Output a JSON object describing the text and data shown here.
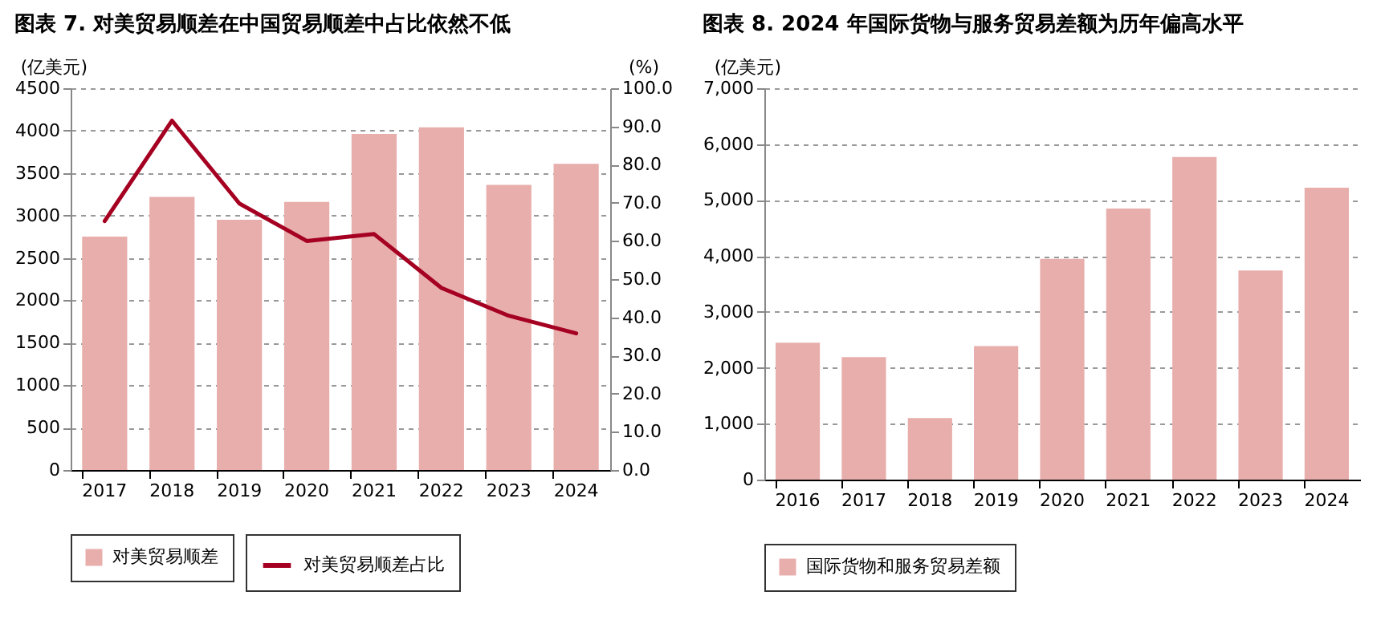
{
  "chart_data": [
    {
      "type": "bar",
      "title": "图表 7. 对美贸易顺差在中国贸易顺差中占比依然不低",
      "ylabel": "(亿美元)",
      "y2label": "(%)",
      "categories": [
        "2017",
        "2018",
        "2019",
        "2020",
        "2021",
        "2022",
        "2023",
        "2024"
      ],
      "series": [
        {
          "name": "对美贸易顺差",
          "color": "#e8aeac",
          "values": [
            2750,
            3220,
            2950,
            3160,
            3960,
            4040,
            3360,
            3610
          ]
        },
        {
          "name": "对美贸易顺差占比",
          "type": "line",
          "axis": "y2",
          "color": "#a50021",
          "values": [
            65.2,
            91.5,
            69.8,
            60.0,
            61.8,
            47.7,
            40.4,
            35.8
          ]
        }
      ],
      "ylim": [
        0,
        4500
      ],
      "yticks": [
        0,
        500,
        1000,
        1500,
        2000,
        2500,
        3000,
        3500,
        4000,
        4500
      ],
      "y2lim": [
        0,
        100
      ],
      "y2ticks": [
        {
          "value": 0,
          "label": "0.0"
        },
        {
          "value": 10,
          "label": "10.0"
        },
        {
          "value": 20,
          "label": "20.0"
        },
        {
          "value": 30,
          "label": "30.0"
        },
        {
          "value": 40,
          "label": "40.0"
        },
        {
          "value": 50,
          "label": "50.0"
        },
        {
          "value": 60,
          "label": "60.0"
        },
        {
          "value": 70,
          "label": "70.0"
        },
        {
          "value": 80,
          "label": "80.0"
        },
        {
          "value": 90,
          "label": "90.0"
        },
        {
          "value": 100,
          "label": "100.0"
        }
      ],
      "grid": "y",
      "legend": "bottom"
    },
    {
      "type": "bar",
      "title": "图表 8. 2024 年国际货物与服务贸易差额为历年偏高水平",
      "ylabel": "(亿美元)",
      "categories": [
        "2016",
        "2017",
        "2018",
        "2019",
        "2020",
        "2021",
        "2022",
        "2023",
        "2024"
      ],
      "series": [
        {
          "name": "国际货物和服务贸易差额",
          "color": "#e8aeac",
          "values": [
            2450,
            2190,
            1100,
            2390,
            3950,
            4850,
            5770,
            3740,
            5220
          ]
        }
      ],
      "ylim": [
        0,
        7000
      ],
      "yticks": [
        0,
        {
          "value": 1000,
          "label": "1,000"
        },
        {
          "value": 2000,
          "label": "2,000"
        },
        {
          "value": 3000,
          "label": "3,000"
        },
        {
          "value": 4000,
          "label": "4,000"
        },
        {
          "value": 5000,
          "label": "5,000"
        },
        {
          "value": 6000,
          "label": "6,000"
        },
        {
          "value": 7000,
          "label": "7,000"
        }
      ],
      "grid": "y",
      "legend": "bottom"
    }
  ]
}
